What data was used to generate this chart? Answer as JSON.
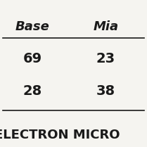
{
  "col1_header": "Base",
  "col2_header": "Mia",
  "rows": [
    [
      "69",
      "23"
    ],
    [
      "28",
      "38"
    ]
  ],
  "footer_text": "ELECTRON MICRO",
  "bg_color": "#f5f4f0",
  "text_color": "#1a1a1a",
  "header_fontsize": 13,
  "cell_fontsize": 14,
  "footer_fontsize": 13,
  "line_color": "#1a1a1a",
  "line_width": 1.2
}
